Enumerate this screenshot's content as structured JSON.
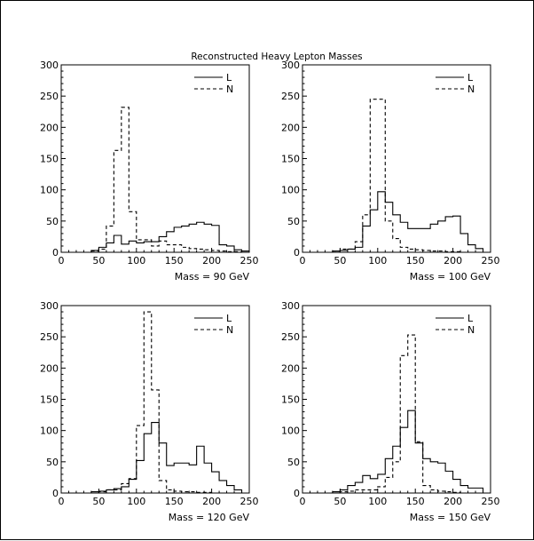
{
  "figure_title": "Reconstructed Heavy Lepton Masses",
  "chart_data": [
    {
      "type": "histogram",
      "caption": "Mass = 90 GeV",
      "xlim": [
        0,
        250
      ],
      "ylim": [
        0,
        300
      ],
      "xticks": [
        0,
        50,
        100,
        150,
        200,
        250
      ],
      "yticks": [
        0,
        50,
        100,
        150,
        200,
        250,
        300
      ],
      "bin_edges": [
        0,
        10,
        20,
        30,
        40,
        50,
        60,
        70,
        80,
        90,
        100,
        110,
        120,
        130,
        140,
        150,
        160,
        170,
        180,
        190,
        200,
        210,
        220,
        230,
        240,
        250
      ],
      "legend": {
        "position": "top-right"
      },
      "series": [
        {
          "name": "L",
          "style": "solid",
          "values": [
            0,
            0,
            0,
            0,
            3,
            8,
            15,
            27,
            13,
            18,
            15,
            17,
            17,
            25,
            33,
            40,
            42,
            45,
            48,
            45,
            43,
            12,
            10,
            4,
            2
          ]
        },
        {
          "name": "N",
          "style": "dashed",
          "values": [
            0,
            0,
            0,
            0,
            2,
            5,
            42,
            163,
            232,
            65,
            20,
            20,
            10,
            18,
            12,
            12,
            8,
            6,
            5,
            4,
            3,
            2,
            1,
            1,
            0
          ]
        }
      ]
    },
    {
      "type": "histogram",
      "caption": "Mass = 100 GeV",
      "xlim": [
        0,
        250
      ],
      "ylim": [
        0,
        300
      ],
      "xticks": [
        0,
        50,
        100,
        150,
        200,
        250
      ],
      "yticks": [
        0,
        50,
        100,
        150,
        200,
        250,
        300
      ],
      "bin_edges": [
        0,
        10,
        20,
        30,
        40,
        50,
        60,
        70,
        80,
        90,
        100,
        110,
        120,
        130,
        140,
        150,
        160,
        170,
        180,
        190,
        200,
        210,
        220,
        230,
        240,
        250
      ],
      "legend": {
        "position": "top-right"
      },
      "series": [
        {
          "name": "L",
          "style": "solid",
          "values": [
            0,
            0,
            0,
            0,
            2,
            3,
            5,
            8,
            42,
            68,
            97,
            80,
            60,
            48,
            38,
            38,
            38,
            45,
            50,
            57,
            58,
            30,
            12,
            6,
            0
          ]
        },
        {
          "name": "N",
          "style": "dashed",
          "values": [
            0,
            0,
            0,
            0,
            2,
            5,
            5,
            17,
            60,
            245,
            245,
            50,
            22,
            8,
            5,
            4,
            3,
            2,
            2,
            1,
            1,
            0,
            0,
            0,
            0
          ]
        }
      ]
    },
    {
      "type": "histogram",
      "caption": "Mass = 120 GeV",
      "xlim": [
        0,
        250
      ],
      "ylim": [
        0,
        300
      ],
      "xticks": [
        0,
        50,
        100,
        150,
        200,
        250
      ],
      "yticks": [
        0,
        50,
        100,
        150,
        200,
        250,
        300
      ],
      "bin_edges": [
        0,
        10,
        20,
        30,
        40,
        50,
        60,
        70,
        80,
        90,
        100,
        110,
        120,
        130,
        140,
        150,
        160,
        170,
        180,
        190,
        200,
        210,
        220,
        230,
        240,
        250
      ],
      "legend": {
        "position": "top-right"
      },
      "series": [
        {
          "name": "L",
          "style": "solid",
          "values": [
            0,
            0,
            0,
            0,
            2,
            3,
            5,
            7,
            10,
            22,
            52,
            95,
            113,
            80,
            44,
            48,
            48,
            45,
            75,
            48,
            34,
            20,
            12,
            5,
            0
          ]
        },
        {
          "name": "N",
          "style": "dashed",
          "values": [
            0,
            0,
            0,
            0,
            0,
            2,
            5,
            5,
            15,
            23,
            108,
            290,
            165,
            20,
            5,
            3,
            2,
            2,
            1,
            1,
            0,
            0,
            0,
            0,
            0
          ]
        }
      ]
    },
    {
      "type": "histogram",
      "caption": "Mass = 150 GeV",
      "xlim": [
        0,
        250
      ],
      "ylim": [
        0,
        300
      ],
      "xticks": [
        0,
        50,
        100,
        150,
        200,
        250
      ],
      "yticks": [
        0,
        50,
        100,
        150,
        200,
        250,
        300
      ],
      "bin_edges": [
        0,
        10,
        20,
        30,
        40,
        50,
        60,
        70,
        80,
        90,
        100,
        110,
        120,
        130,
        140,
        150,
        160,
        170,
        180,
        190,
        200,
        210,
        220,
        230,
        240,
        250
      ],
      "legend": {
        "position": "top-right"
      },
      "series": [
        {
          "name": "L",
          "style": "solid",
          "values": [
            0,
            0,
            0,
            0,
            2,
            5,
            12,
            17,
            28,
            23,
            30,
            55,
            75,
            105,
            132,
            80,
            55,
            50,
            48,
            35,
            22,
            12,
            8,
            8,
            0
          ]
        },
        {
          "name": "N",
          "style": "dashed",
          "values": [
            0,
            0,
            0,
            0,
            0,
            2,
            3,
            5,
            5,
            5,
            10,
            25,
            50,
            220,
            253,
            82,
            12,
            5,
            3,
            2,
            1,
            0,
            0,
            0,
            0
          ]
        }
      ]
    }
  ]
}
